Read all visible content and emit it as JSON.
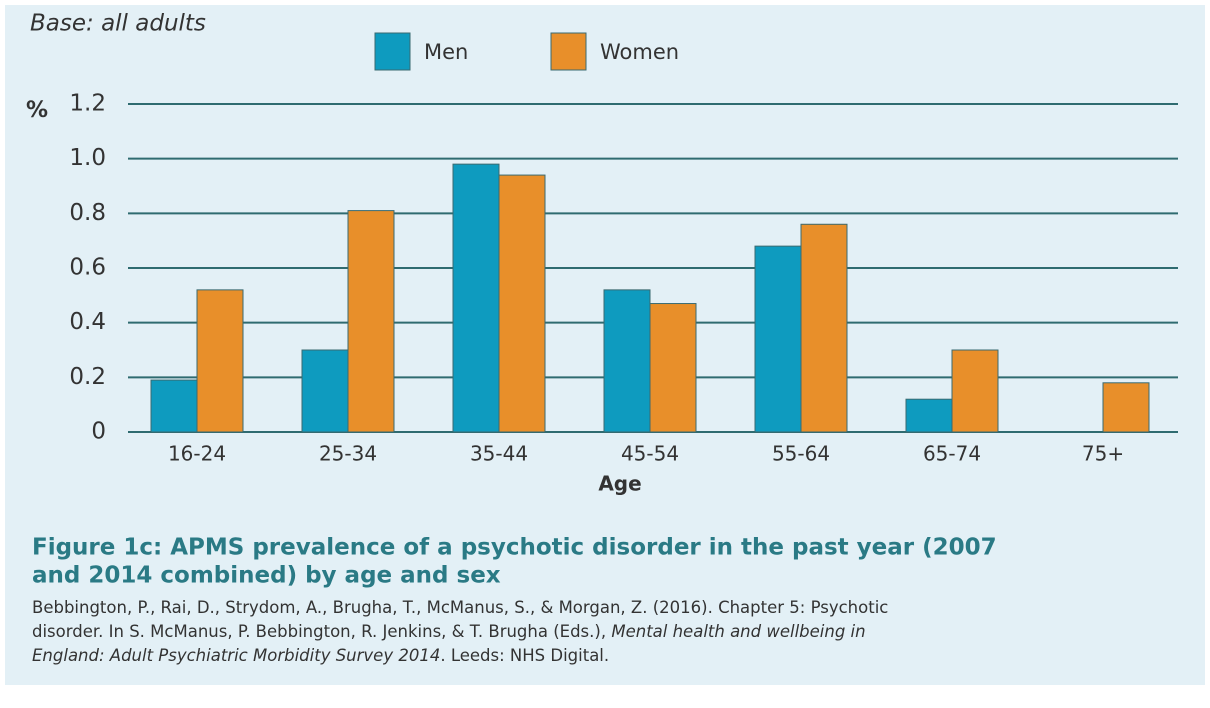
{
  "chart_data": {
    "type": "bar",
    "subtitle": "Base: all adults",
    "y_unit": "%",
    "xlabel": "Age",
    "categories": [
      "16-24",
      "25-34",
      "35-44",
      "45-54",
      "55-64",
      "65-74",
      "75+"
    ],
    "series": [
      {
        "name": "Men",
        "color": "#0e9bbf",
        "values": [
          0.19,
          0.3,
          0.98,
          0.52,
          0.68,
          0.12,
          0
        ]
      },
      {
        "name": "Women",
        "color": "#e88f2a",
        "values": [
          0.52,
          0.81,
          0.94,
          0.47,
          0.76,
          0.3,
          0.18
        ]
      }
    ],
    "ylim": [
      0,
      1.2
    ],
    "yticks": [
      0,
      0.2,
      0.4,
      0.6,
      0.8,
      {
        "value": 1,
        "label": "1.0"
      },
      1.2
    ],
    "grid": true,
    "title_lines": [
      "Figure 1c: APMS prevalence of a psychotic disorder in the past year (2007",
      "and 2014 combined) by age and sex"
    ],
    "citation_lines": [
      [
        {
          "text": "Bebbington, P., Rai, D., Strydom, A., Brugha, T., McManus, S., & Morgan, Z. (2016). Chapter 5: Psychotic",
          "italic": false
        }
      ],
      [
        {
          "text": "disorder. In S. McManus, P. Bebbington, R. Jenkins, & T. Brugha (Eds.), ",
          "italic": false
        },
        {
          "text": "Mental health and wellbeing in",
          "italic": true
        }
      ],
      [
        {
          "text": "England: Adult Psychiatric Morbidity Survey 2014",
          "italic": true
        },
        {
          "text": ". Leeds: NHS Digital.",
          "italic": false
        }
      ]
    ]
  }
}
